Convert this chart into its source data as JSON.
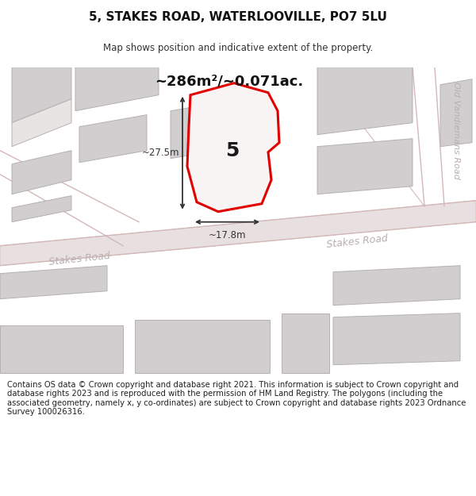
{
  "title": "5, STAKES ROAD, WATERLOOVILLE, PO7 5LU",
  "subtitle": "Map shows position and indicative extent of the property.",
  "area_text": "~286m²/~0.071ac.",
  "number_label": "5",
  "dim_vertical": "~27.5m",
  "dim_horizontal": "~17.8m",
  "road_label_diag1": "Stakes Road",
  "road_label_diag2": "Stakes Road",
  "road_label_vert": "Old Vandiemans Road",
  "footer_text": "Contains OS data © Crown copyright and database right 2021. This information is subject to Crown copyright and database rights 2023 and is reproduced with the permission of HM Land Registry. The polygons (including the associated geometry, namely x, y co-ordinates) are subject to Crown copyright and database rights 2023 Ordnance Survey 100026316.",
  "bg_color": "#ffffff",
  "map_bg": "#f0efef",
  "road_fill": "#e8e0e0",
  "road_edge": "#d4b8b8",
  "building_fill": "#d0cece",
  "building_edge": "#b8b0b0",
  "highlight_fill": "#f8f4f4",
  "highlight_stroke": "#e00000",
  "road_label_color": "#b8aeae",
  "dim_color": "#333333",
  "area_color": "#111111",
  "footer_color": "#222222",
  "title_color": "#111111",
  "subtitle_color": "#333333"
}
